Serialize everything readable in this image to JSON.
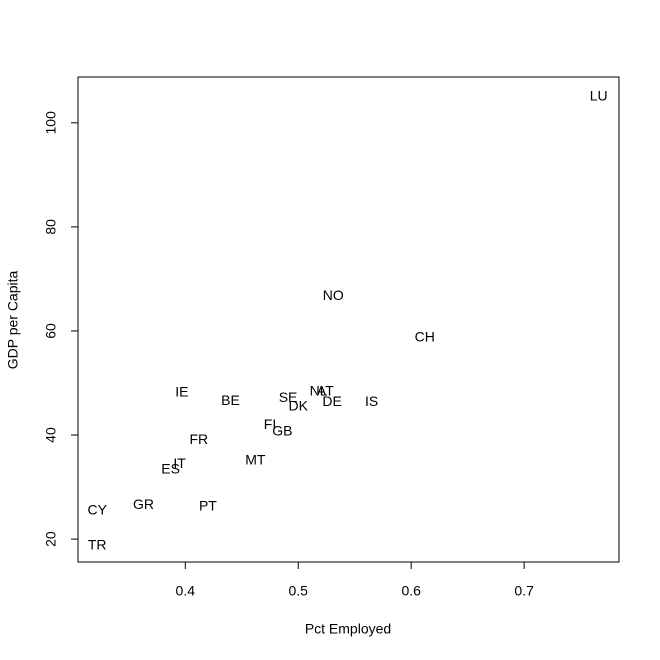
{
  "chart_data": {
    "type": "scatter",
    "xlabel": "Pct Employed",
    "ylabel": "GDP per Capita",
    "labels": [
      "LU",
      "NO",
      "CH",
      "IE",
      "BE",
      "SE",
      "NL",
      "AT",
      "DK",
      "DE",
      "IS",
      "FI",
      "GB",
      "FR",
      "MT",
      "IT",
      "ES",
      "CY",
      "GR",
      "PT",
      "TR"
    ],
    "x": [
      0.766,
      0.531,
      0.612,
      0.397,
      0.44,
      0.491,
      0.518,
      0.524,
      0.5,
      0.53,
      0.565,
      0.475,
      0.486,
      0.412,
      0.462,
      0.395,
      0.387,
      0.322,
      0.363,
      0.42,
      0.322
    ],
    "values": [
      105.0,
      66.7,
      58.7,
      48.1,
      46.5,
      47.1,
      48.3,
      48.3,
      45.4,
      46.3,
      46.3,
      41.9,
      40.6,
      39.0,
      35.0,
      34.4,
      33.3,
      25.4,
      26.5,
      26.2,
      18.7
    ],
    "color": "#000000",
    "xlim": [
      0.305,
      0.784
    ],
    "ylim": [
      15.6,
      108.8
    ],
    "xticks": [
      0.4,
      0.5,
      0.6,
      0.7
    ],
    "yticks": [
      20,
      40,
      60,
      80,
      100
    ]
  }
}
